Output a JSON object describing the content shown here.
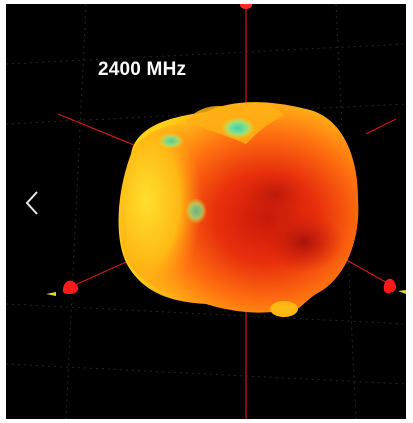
{
  "viewer": {
    "frequency_label": "2400 MHz",
    "navigation": {
      "previous_icon": "chevron-left-icon"
    },
    "colors": {
      "background": "#000000",
      "axis": "#ff2a2a",
      "pattern_hot": "#e8240c",
      "pattern_mid": "#ff8a10",
      "pattern_warm": "#ffd21a",
      "pattern_cool": "#35d2b4",
      "grid": "#2a2a2a"
    }
  }
}
